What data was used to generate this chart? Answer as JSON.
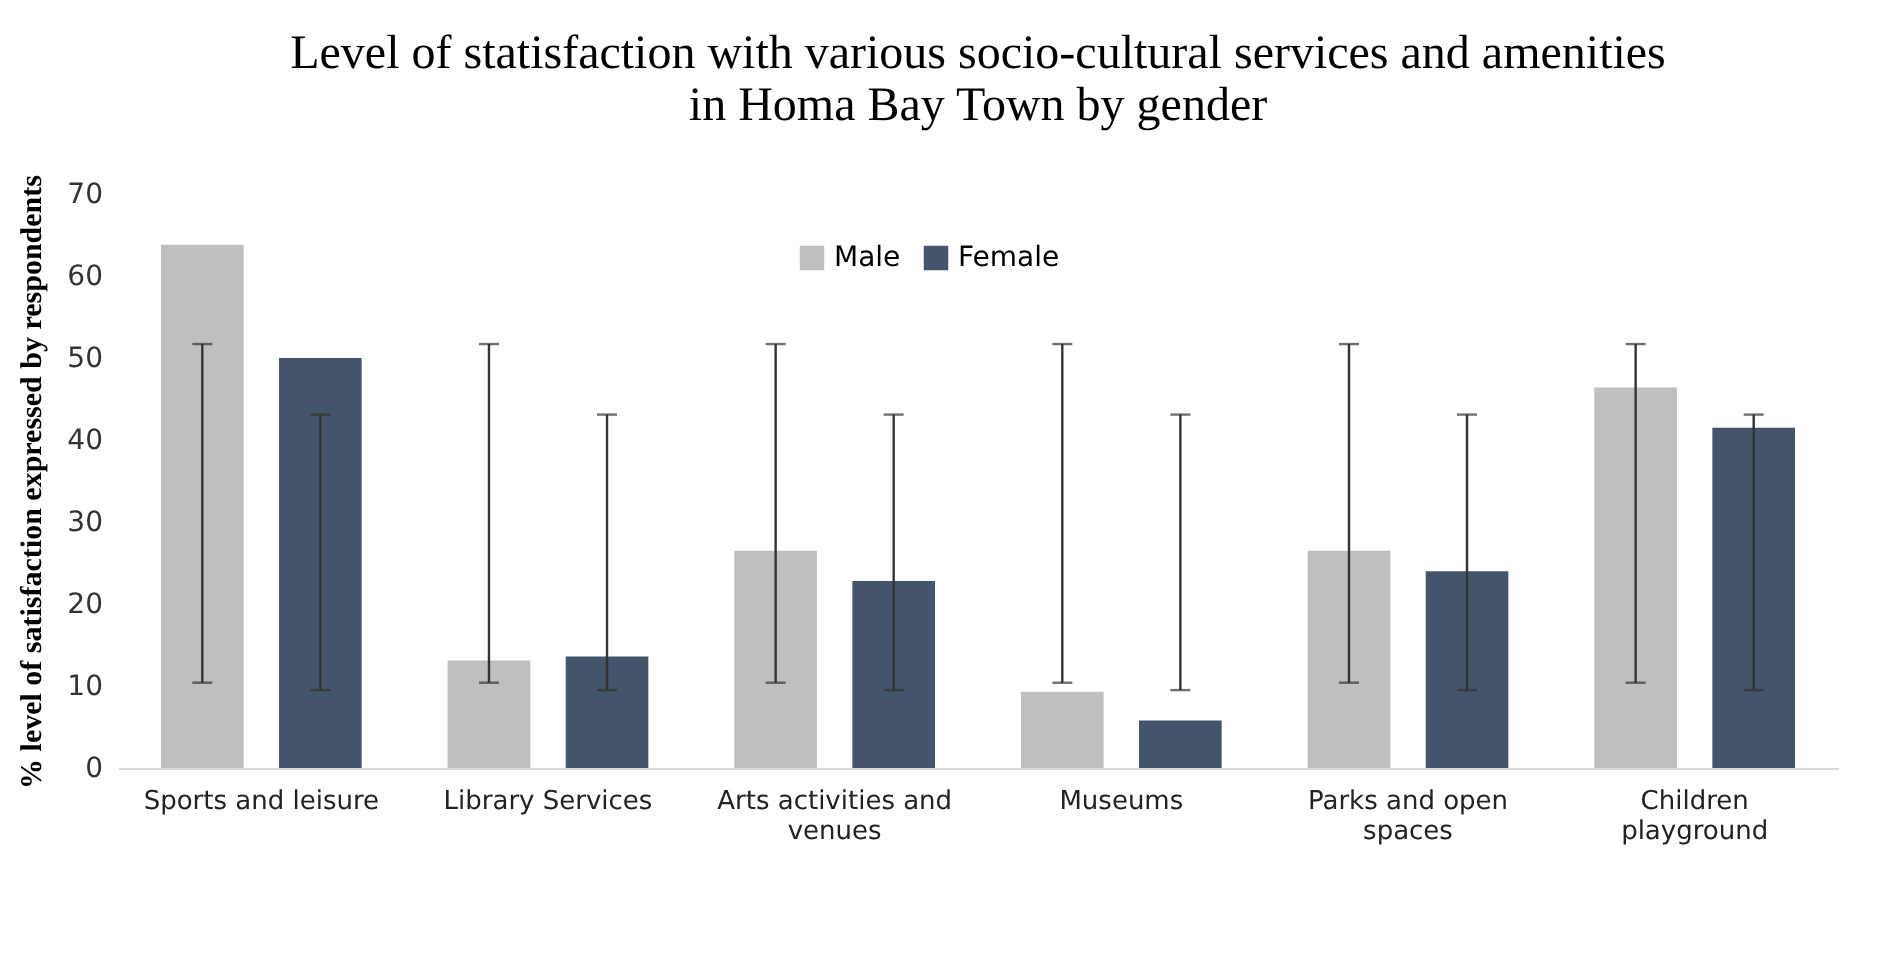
{
  "chart_data": {
    "type": "bar",
    "title": "Level of statisfaction with various socio-cultural services and amenities in Homa Bay Town by gender",
    "ylabel": "% level  of satisfaction expressed by respondents",
    "categories": [
      "Sports and leisure",
      "Library Services",
      "Arts activities and venues",
      "Museums",
      "Parks and open spaces",
      "Children playground"
    ],
    "series": [
      {
        "name": "Male",
        "color": "#bfbfbf",
        "values": [
          63.8,
          13.1,
          26.5,
          9.3,
          26.5,
          46.4
        ],
        "errors": [
          [
            10.4,
            51.7
          ],
          [
            10.4,
            51.7
          ],
          [
            10.4,
            51.7
          ],
          [
            10.4,
            51.7
          ],
          [
            10.4,
            51.7
          ],
          [
            10.4,
            51.7
          ]
        ]
      },
      {
        "name": "Female",
        "color": "#44546a",
        "values": [
          50,
          13.6,
          22.8,
          5.8,
          24,
          41.5
        ],
        "errors": [
          [
            9.5,
            43.1
          ],
          [
            9.5,
            43.1
          ],
          [
            9.5,
            43.1
          ],
          [
            9.5,
            43.1
          ],
          [
            9.5,
            43.1
          ],
          [
            9.5,
            43.1
          ]
        ]
      }
    ],
    "ylim": [
      0,
      70
    ],
    "yticks": [
      0,
      10,
      20,
      30,
      40,
      50,
      60,
      70
    ],
    "grid": false,
    "legend": "top"
  }
}
